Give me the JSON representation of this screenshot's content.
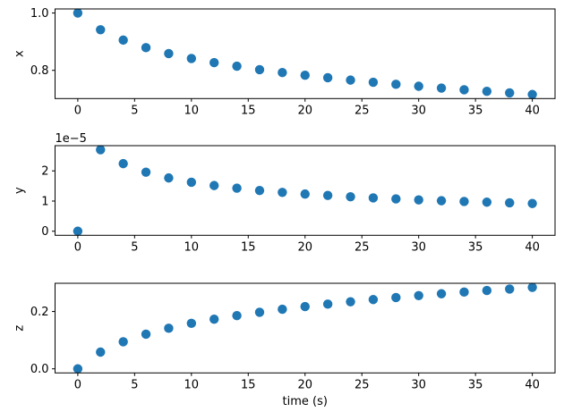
{
  "figure": {
    "background": "#ffffff",
    "marker_color": "#1f77b4",
    "spine_color": "#000000",
    "text_color": "#000000",
    "xlabel": "time (s)",
    "xlim": [
      -2,
      42
    ],
    "x_ticks": [
      0,
      5,
      10,
      15,
      20,
      25,
      30,
      35,
      40
    ],
    "x_tick_labels": [
      "0",
      "5",
      "10",
      "15",
      "20",
      "25",
      "30",
      "35",
      "40"
    ]
  },
  "chart_data": [
    {
      "type": "scatter",
      "ylabel": "x",
      "xlabel": "",
      "grid": false,
      "legend": "none",
      "x": [
        0,
        2,
        4,
        6,
        8,
        10,
        12,
        14,
        16,
        18,
        20,
        22,
        24,
        26,
        28,
        30,
        32,
        34,
        36,
        38,
        40
      ],
      "y": [
        1.0,
        0.9416,
        0.9055,
        0.8791,
        0.8585,
        0.8414,
        0.827,
        0.8144,
        0.8026,
        0.7923,
        0.7829,
        0.7744,
        0.766,
        0.7585,
        0.7514,
        0.7446,
        0.7382,
        0.7323,
        0.7268,
        0.7215,
        0.7158
      ],
      "ylim": [
        0.70159,
        1.01421
      ],
      "y_ticks": [
        0.8,
        1.0
      ],
      "y_tick_labels": [
        "0.8",
        "1.0"
      ],
      "offset_text": ""
    },
    {
      "type": "scatter",
      "ylabel": "y",
      "xlabel": "",
      "grid": false,
      "legend": "none",
      "x": [
        0,
        2,
        4,
        6,
        8,
        10,
        12,
        14,
        16,
        18,
        20,
        22,
        24,
        26,
        28,
        30,
        32,
        34,
        36,
        38,
        40
      ],
      "y": [
        0.0,
        2.7012e-05,
        2.24e-05,
        1.9576e-05,
        1.7658e-05,
        1.6235e-05,
        1.5144e-05,
        1.4263e-05,
        1.3495e-05,
        1.2867e-05,
        1.2325e-05,
        1.186e-05,
        1.1422e-05,
        1.1047e-05,
        1.0707e-05,
        1.0393e-05,
        1.0108e-05,
        9.853e-06,
        9.625e-06,
        9.408e-06,
        9.184e-06
      ],
      "ylim": [
        -1.3506e-06,
        2.83626e-05
      ],
      "y_ticks": [
        0,
        1e-05,
        2e-05
      ],
      "y_tick_labels": [
        "0",
        "1",
        "2"
      ],
      "offset_text": "1e−5"
    },
    {
      "type": "scatter",
      "ylabel": "z",
      "xlabel": "time (s)",
      "grid": false,
      "legend": "none",
      "x": [
        0,
        2,
        4,
        6,
        8,
        10,
        12,
        14,
        16,
        18,
        20,
        22,
        24,
        26,
        28,
        30,
        32,
        34,
        36,
        38,
        40
      ],
      "y": [
        0.0,
        0.0584,
        0.0945,
        0.1209,
        0.1415,
        0.1586,
        0.173,
        0.1856,
        0.1974,
        0.2077,
        0.2171,
        0.2256,
        0.234,
        0.2415,
        0.2486,
        0.2554,
        0.2618,
        0.2677,
        0.2732,
        0.2785,
        0.2842
      ],
      "ylim": [
        -0.01421,
        0.29841
      ],
      "y_ticks": [
        0.0,
        0.2
      ],
      "y_tick_labels": [
        "0.0",
        "0.2"
      ],
      "offset_text": ""
    }
  ]
}
